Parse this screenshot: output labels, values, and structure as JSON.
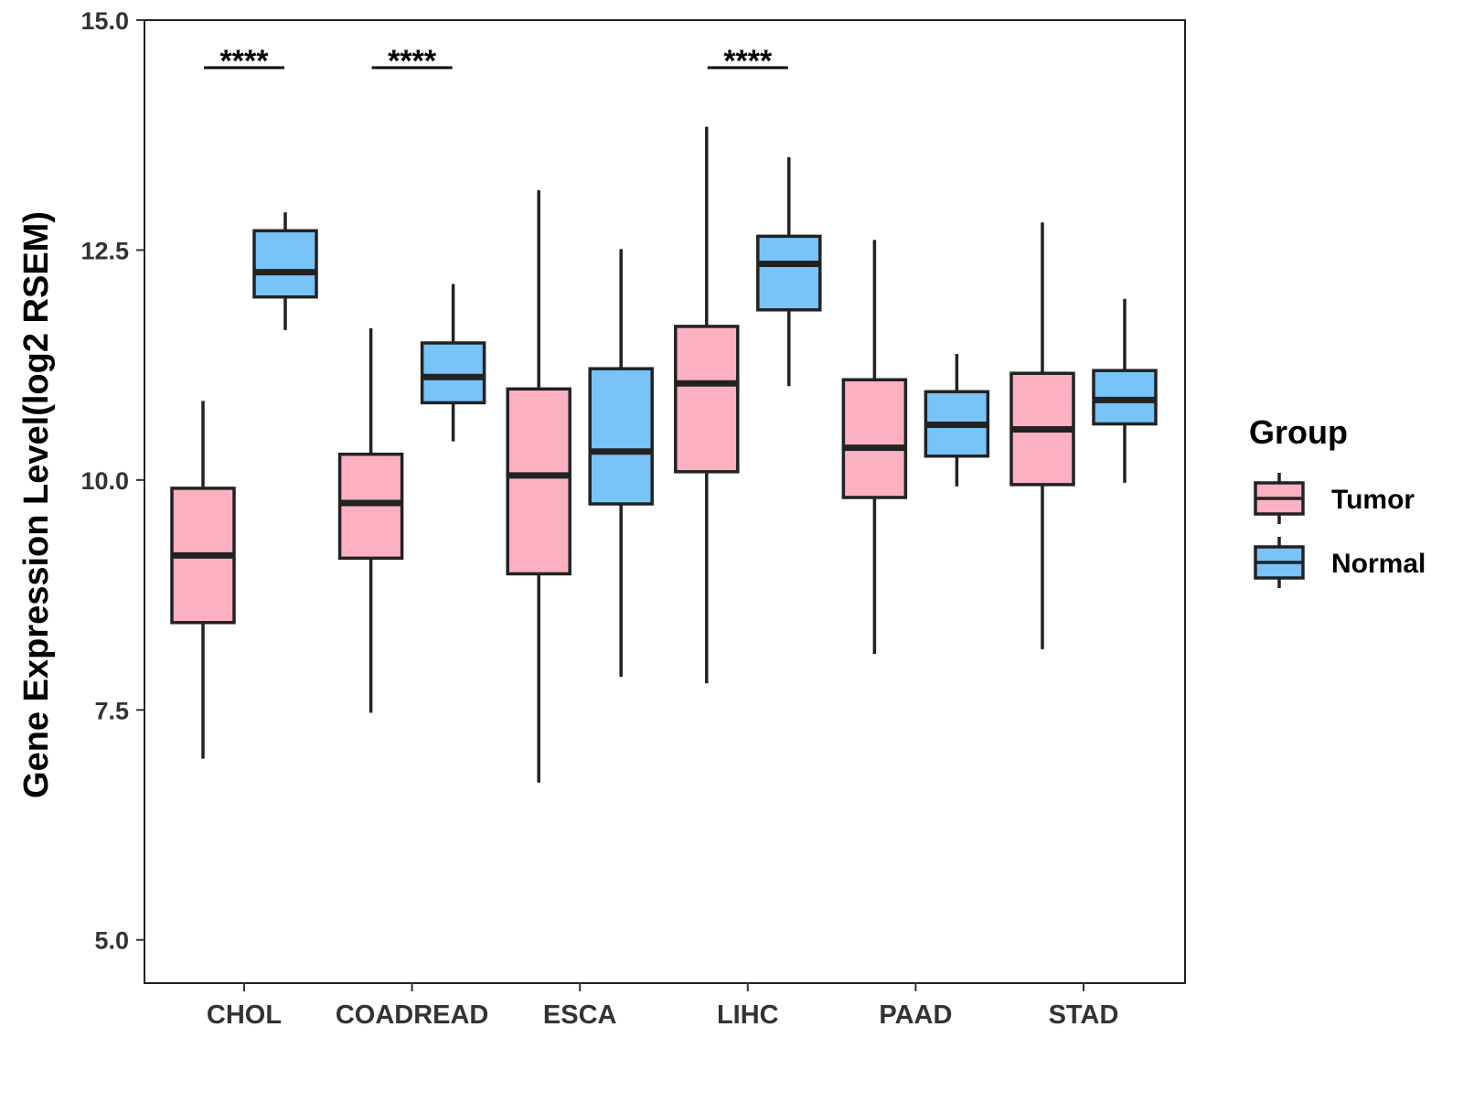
{
  "chart_data": {
    "type": "boxplot",
    "title": "",
    "xlabel": "",
    "ylabel": "Gene Expression Level(log2 RSEM)",
    "ylim": [
      4.53,
      15.0
    ],
    "yticks": [
      "5.0",
      "7.5",
      "10.0",
      "12.5",
      "15.0"
    ],
    "categories": [
      "CHOL",
      "COADREAD",
      "ESCA",
      "LIHC",
      "PAAD",
      "STAD"
    ],
    "legend": {
      "title": "Group",
      "position": "right"
    },
    "colors": {
      "Tumor": "#FCB1C3",
      "Normal": "#78C3F8",
      "outline": "#222222"
    },
    "series": [
      {
        "name": "Tumor",
        "boxes": [
          {
            "min": 6.97,
            "q1": 8.45,
            "median": 9.18,
            "q3": 9.91,
            "max": 10.86
          },
          {
            "min": 7.47,
            "q1": 9.15,
            "median": 9.75,
            "q3": 10.28,
            "max": 11.65
          },
          {
            "min": 6.71,
            "q1": 8.98,
            "median": 10.05,
            "q3": 10.99,
            "max": 13.15
          },
          {
            "min": 7.79,
            "q1": 10.09,
            "median": 11.05,
            "q3": 11.67,
            "max": 13.84
          },
          {
            "min": 8.11,
            "q1": 9.81,
            "median": 10.35,
            "q3": 11.09,
            "max": 12.61
          },
          {
            "min": 8.16,
            "q1": 9.95,
            "median": 10.55,
            "q3": 11.16,
            "max": 12.8
          }
        ]
      },
      {
        "name": "Normal",
        "boxes": [
          {
            "min": 11.63,
            "q1": 11.99,
            "median": 12.26,
            "q3": 12.71,
            "max": 12.91
          },
          {
            "min": 10.42,
            "q1": 10.84,
            "median": 11.12,
            "q3": 11.49,
            "max": 12.13
          },
          {
            "min": 7.86,
            "q1": 9.74,
            "median": 10.31,
            "q3": 11.21,
            "max": 12.51
          },
          {
            "min": 11.02,
            "q1": 11.85,
            "median": 12.35,
            "q3": 12.65,
            "max": 13.51
          },
          {
            "min": 9.93,
            "q1": 10.26,
            "median": 10.6,
            "q3": 10.96,
            "max": 11.37
          },
          {
            "min": 9.97,
            "q1": 10.61,
            "median": 10.87,
            "q3": 11.19,
            "max": 11.97
          }
        ]
      }
    ],
    "significance": [
      {
        "category": "CHOL",
        "label": "****"
      },
      {
        "category": "COADREAD",
        "label": "****"
      },
      {
        "category": "LIHC",
        "label": "****"
      }
    ]
  }
}
